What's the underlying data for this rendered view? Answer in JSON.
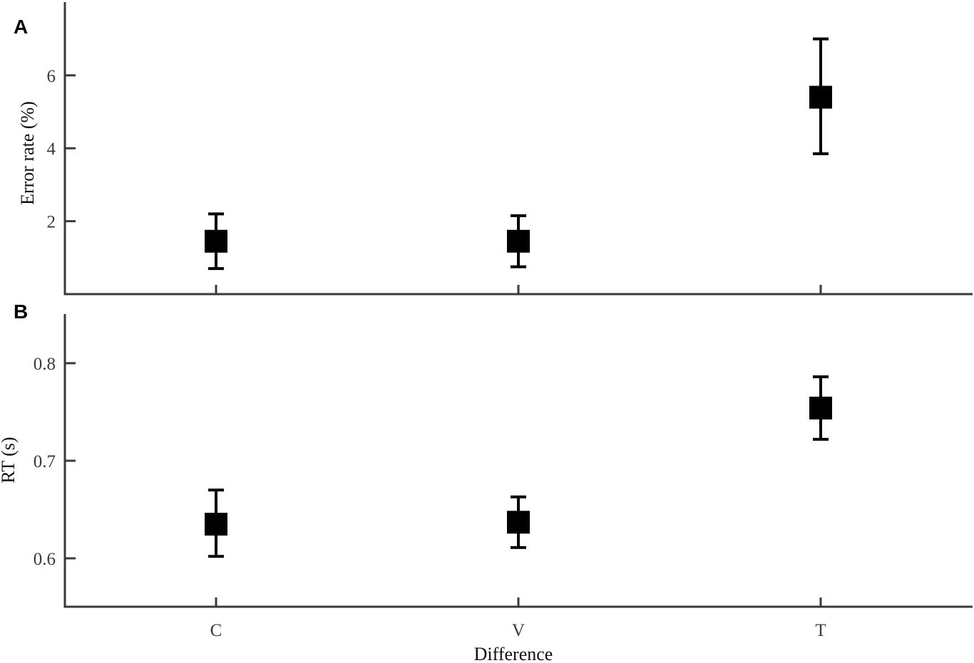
{
  "chart_data": [
    {
      "panel_label": "A",
      "type": "scatter",
      "categories": [
        "C",
        "V",
        "T"
      ],
      "ylabel": "Error rate (%)",
      "xlabel": "",
      "yticks": [
        2,
        4,
        6
      ],
      "ylim": [
        0,
        8
      ],
      "grid": false,
      "series": [
        {
          "values": [
            1.45,
            1.45,
            5.4
          ],
          "error_low": [
            0.7,
            0.75,
            3.85
          ],
          "error_high": [
            2.2,
            2.15,
            7.0
          ]
        }
      ]
    },
    {
      "panel_label": "B",
      "type": "scatter",
      "categories": [
        "C",
        "V",
        "T"
      ],
      "ylabel": "RT (s)",
      "xlabel": "Difference",
      "yticks": [
        0.6,
        0.7,
        0.8
      ],
      "ytick_labels": [
        "0.6",
        "0.7",
        "0.8"
      ],
      "ylim": [
        0.55,
        0.85
      ],
      "grid": false,
      "series": [
        {
          "values": [
            0.635,
            0.637,
            0.754
          ],
          "error_low": [
            0.602,
            0.611,
            0.722
          ],
          "error_high": [
            0.67,
            0.663,
            0.786
          ]
        }
      ]
    }
  ]
}
